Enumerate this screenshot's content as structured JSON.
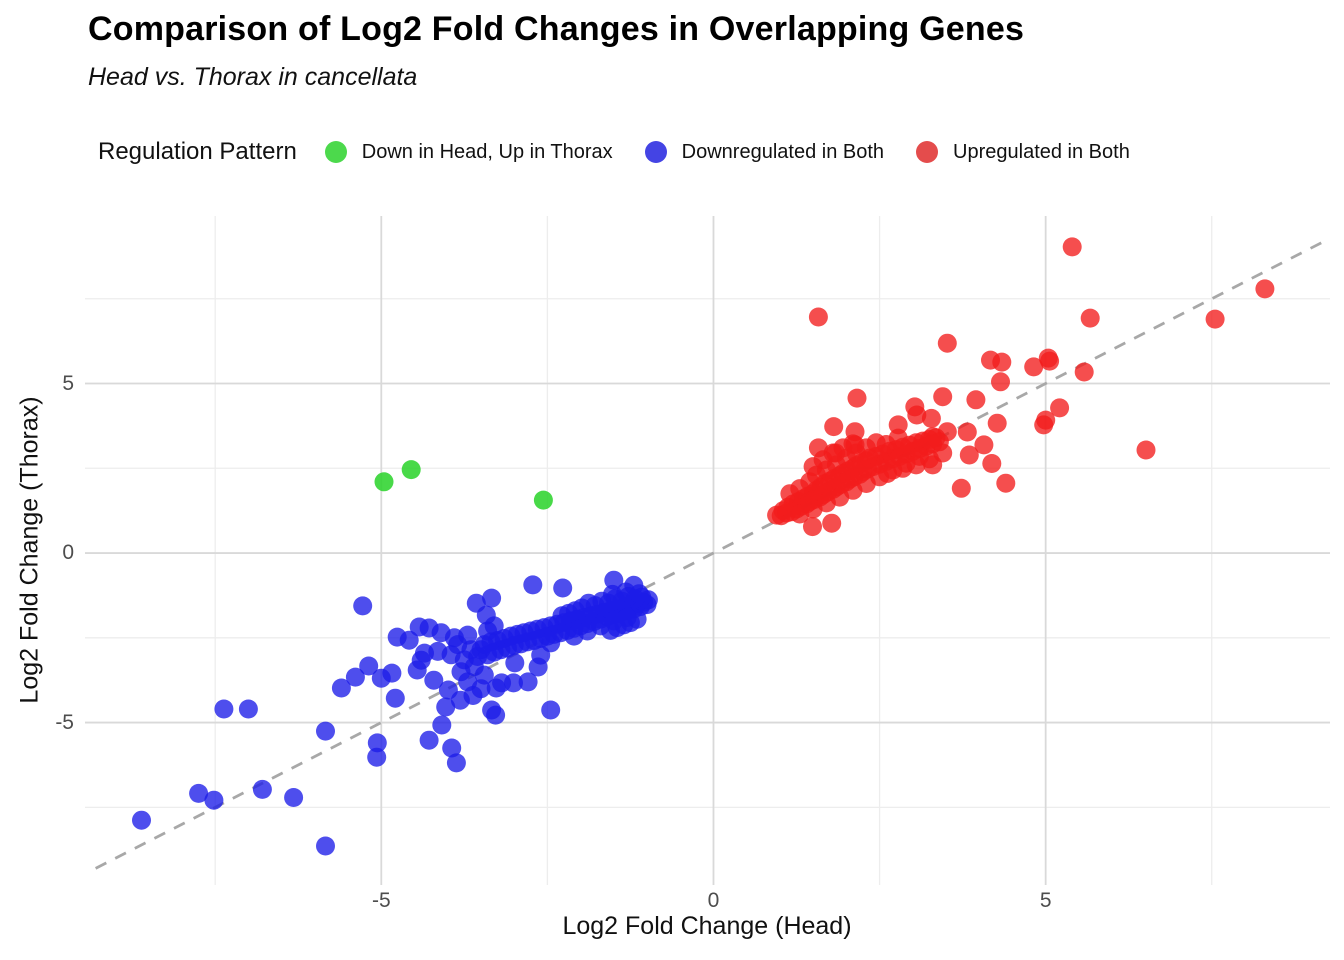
{
  "ui": {
    "title": "Comparison of Log2 Fold Changes in Overlapping Genes",
    "subtitle": "Head vs. Thorax in cancellata",
    "legend": {
      "title": "Regulation Pattern",
      "items": [
        {
          "label": "Down in Head, Up in Thorax",
          "color": "#4cd94c"
        },
        {
          "label": "Downregulated in Both",
          "color": "#4444e4"
        },
        {
          "label": "Upregulated in Both",
          "color": "#e44c4c"
        }
      ]
    },
    "x_axis": {
      "label": "Log2 Fold Change (Head)"
    },
    "y_axis": {
      "label": "Log2 Fold Change (Thorax)"
    }
  },
  "chart_data": {
    "type": "scatter",
    "title": "Comparison of Log2 Fold Changes in Overlapping Genes",
    "subtitle": "Head vs. Thorax in cancellata",
    "xlabel": "Log2 Fold Change (Head)",
    "ylabel": "Log2 Fold Change (Thorax)",
    "xlim": [
      -9.46,
      9.28
    ],
    "ylim": [
      -9.79,
      9.94
    ],
    "x_major_ticks": [
      -5,
      0,
      5
    ],
    "x_tick_labels": [
      "-5",
      "0",
      "5"
    ],
    "x_minor_ticks": [
      -7.5,
      -2.5,
      2.5,
      7.5
    ],
    "y_major_ticks": [
      -5,
      0,
      5
    ],
    "y_tick_labels": [
      "-5",
      "0",
      "5"
    ],
    "y_minor_ticks": [
      -7.5,
      -2.5,
      2.5,
      7.5
    ],
    "grid": true,
    "grid_major_color": "#d9d9d9",
    "grid_minor_color": "#ededed",
    "legend_position": "top",
    "identity_line": {
      "style": "dashed",
      "color": "#a8a8a8",
      "from": [
        -9.3,
        -9.3
      ],
      "to": [
        9.28,
        9.28
      ]
    },
    "point_radius": 9.5,
    "series": [
      {
        "name": "Down in Head, Up in Thorax",
        "color": "rgba(40,210,40,0.85)",
        "points": [
          [
            -4.96,
            2.1
          ],
          [
            -4.55,
            2.46
          ],
          [
            -2.56,
            1.56
          ]
        ]
      },
      {
        "name": "Downregulated in Both",
        "color": "rgba(28,28,232,0.78)",
        "points": [
          [
            -8.61,
            -7.88
          ],
          [
            -7.75,
            -7.09
          ],
          [
            -7.52,
            -7.29
          ],
          [
            -6.79,
            -6.97
          ],
          [
            -6.32,
            -7.21
          ],
          [
            -5.84,
            -8.64
          ],
          [
            -5.28,
            -1.56
          ],
          [
            -7.37,
            -4.6
          ],
          [
            -7.0,
            -4.6
          ],
          [
            -5.84,
            -5.25
          ],
          [
            -5.06,
            -5.6
          ],
          [
            -5.07,
            -6.02
          ],
          [
            -5.6,
            -3.98
          ],
          [
            -5.39,
            -3.66
          ],
          [
            -5.19,
            -3.33
          ],
          [
            -5.0,
            -3.69
          ],
          [
            -4.84,
            -3.54
          ],
          [
            -4.79,
            -4.28
          ],
          [
            -4.76,
            -2.48
          ],
          [
            -4.43,
            -2.18
          ],
          [
            -4.28,
            -2.21
          ],
          [
            -4.58,
            -2.57
          ],
          [
            -4.4,
            -3.16
          ],
          [
            -4.46,
            -3.45
          ],
          [
            -4.21,
            -3.75
          ],
          [
            -3.99,
            -4.04
          ],
          [
            -3.81,
            -4.34
          ],
          [
            -4.03,
            -4.54
          ],
          [
            -4.09,
            -5.07
          ],
          [
            -4.28,
            -5.52
          ],
          [
            -3.94,
            -5.75
          ],
          [
            -3.87,
            -6.19
          ],
          [
            -3.34,
            -4.63
          ],
          [
            -3.28,
            -4.78
          ],
          [
            -2.45,
            -4.63
          ],
          [
            -2.72,
            -0.94
          ],
          [
            -2.27,
            -1.03
          ],
          [
            -3.57,
            -1.48
          ],
          [
            -3.34,
            -1.33
          ],
          [
            -3.42,
            -1.83
          ],
          [
            -3.27,
            -3.98
          ],
          [
            -3.19,
            -3.83
          ],
          [
            -3.01,
            -3.83
          ],
          [
            -2.79,
            -3.8
          ],
          [
            -2.99,
            -3.24
          ],
          [
            -2.64,
            -3.36
          ],
          [
            -2.45,
            -2.65
          ],
          [
            -2.6,
            -3.01
          ],
          [
            -3.5,
            -2.85
          ],
          [
            -3.45,
            -2.7
          ],
          [
            -3.4,
            -3.0
          ],
          [
            -3.35,
            -2.62
          ],
          [
            -3.3,
            -2.92
          ],
          [
            -3.25,
            -2.58
          ],
          [
            -3.2,
            -2.85
          ],
          [
            -3.15,
            -2.52
          ],
          [
            -3.1,
            -2.8
          ],
          [
            -3.05,
            -2.45
          ],
          [
            -3.0,
            -2.72
          ],
          [
            -2.95,
            -2.4
          ],
          [
            -2.9,
            -2.68
          ],
          [
            -2.85,
            -2.35
          ],
          [
            -2.8,
            -2.62
          ],
          [
            -2.75,
            -2.3
          ],
          [
            -2.7,
            -2.58
          ],
          [
            -2.65,
            -2.25
          ],
          [
            -2.6,
            -2.52
          ],
          [
            -2.55,
            -2.2
          ],
          [
            -2.5,
            -2.45
          ],
          [
            -2.45,
            -2.15
          ],
          [
            -2.4,
            -2.4
          ],
          [
            -2.35,
            -2.1
          ],
          [
            -2.3,
            -2.35
          ],
          [
            -2.25,
            -2.05
          ],
          [
            -2.2,
            -2.28
          ],
          [
            -2.15,
            -2.0
          ],
          [
            -2.1,
            -2.22
          ],
          [
            -2.05,
            -1.95
          ],
          [
            -2.0,
            -2.15
          ],
          [
            -1.95,
            -1.9
          ],
          [
            -1.9,
            -2.08
          ],
          [
            -1.85,
            -1.85
          ],
          [
            -1.8,
            -2.02
          ],
          [
            -1.75,
            -1.8
          ],
          [
            -1.7,
            -1.95
          ],
          [
            -1.65,
            -1.75
          ],
          [
            -1.6,
            -1.88
          ],
          [
            -1.55,
            -1.7
          ],
          [
            -1.5,
            -1.82
          ],
          [
            -1.45,
            -1.65
          ],
          [
            -1.4,
            -1.76
          ],
          [
            -1.35,
            -1.6
          ],
          [
            -1.3,
            -1.7
          ],
          [
            -1.25,
            -1.55
          ],
          [
            -1.2,
            -1.65
          ],
          [
            -1.15,
            -1.5
          ],
          [
            -1.1,
            -1.58
          ],
          [
            -1.05,
            -1.45
          ],
          [
            -1.0,
            -1.52
          ],
          [
            -0.98,
            -1.38
          ],
          [
            -1.08,
            -1.3
          ],
          [
            -1.18,
            -1.35
          ],
          [
            -1.28,
            -1.28
          ],
          [
            -1.38,
            -1.42
          ],
          [
            -1.48,
            -1.35
          ],
          [
            -1.58,
            -1.48
          ],
          [
            -1.68,
            -1.42
          ],
          [
            -1.78,
            -1.55
          ],
          [
            -1.88,
            -1.48
          ],
          [
            -1.98,
            -1.62
          ],
          [
            -2.08,
            -1.7
          ],
          [
            -2.18,
            -1.78
          ],
          [
            -2.28,
            -1.85
          ],
          [
            -1.15,
            -1.95
          ],
          [
            -1.25,
            -2.05
          ],
          [
            -1.35,
            -2.12
          ],
          [
            -1.45,
            -2.2
          ],
          [
            -1.55,
            -2.28
          ],
          [
            -1.3,
            -1.9
          ],
          [
            -1.5,
            -2.0
          ],
          [
            -1.7,
            -2.15
          ],
          [
            -1.9,
            -2.3
          ],
          [
            -2.1,
            -2.45
          ],
          [
            -1.12,
            -1.2
          ],
          [
            -1.32,
            -1.15
          ],
          [
            -1.52,
            -1.22
          ],
          [
            -1.5,
            -0.8
          ],
          [
            -1.2,
            -0.95
          ],
          [
            -4.1,
            -2.35
          ],
          [
            -3.9,
            -2.5
          ],
          [
            -3.7,
            -2.42
          ],
          [
            -3.85,
            -2.7
          ],
          [
            -3.65,
            -2.85
          ],
          [
            -3.95,
            -3.0
          ],
          [
            -3.75,
            -3.15
          ],
          [
            -3.55,
            -3.05
          ],
          [
            -3.6,
            -3.35
          ],
          [
            -3.8,
            -3.5
          ],
          [
            -3.45,
            -3.6
          ],
          [
            -3.7,
            -3.8
          ],
          [
            -3.5,
            -4.0
          ],
          [
            -3.62,
            -4.2
          ],
          [
            -4.15,
            -2.9
          ],
          [
            -4.35,
            -2.95
          ],
          [
            -3.4,
            -2.3
          ],
          [
            -3.3,
            -2.15
          ]
        ]
      },
      {
        "name": "Upregulated in Both",
        "color": "rgba(242,28,28,0.78)",
        "points": [
          [
            1.58,
            6.96
          ],
          [
            5.4,
            9.03
          ],
          [
            8.3,
            7.79
          ],
          [
            5.67,
            6.93
          ],
          [
            7.55,
            6.9
          ],
          [
            3.52,
            6.19
          ],
          [
            4.17,
            5.69
          ],
          [
            4.34,
            5.63
          ],
          [
            4.82,
            5.49
          ],
          [
            5.06,
            5.66
          ],
          [
            5.58,
            5.34
          ],
          [
            5.04,
            5.75
          ],
          [
            4.32,
            5.05
          ],
          [
            5.21,
            4.28
          ],
          [
            4.97,
            3.78
          ],
          [
            6.51,
            3.04
          ],
          [
            2.16,
            4.57
          ],
          [
            3.45,
            4.61
          ],
          [
            3.95,
            4.52
          ],
          [
            3.03,
            4.31
          ],
          [
            3.28,
            3.97
          ],
          [
            1.81,
            3.73
          ],
          [
            2.13,
            3.58
          ],
          [
            1.58,
            3.1
          ],
          [
            1.84,
            2.95
          ],
          [
            2.13,
            3.19
          ],
          [
            2.78,
            3.39
          ],
          [
            2.78,
            3.78
          ],
          [
            3.06,
            4.07
          ],
          [
            3.3,
            3.43
          ],
          [
            3.52,
            3.58
          ],
          [
            3.82,
            3.57
          ],
          [
            4.27,
            3.83
          ],
          [
            5.0,
            3.92
          ],
          [
            4.07,
            3.19
          ],
          [
            4.19,
            2.64
          ],
          [
            4.4,
            2.06
          ],
          [
            3.85,
            2.89
          ],
          [
            3.73,
            1.91
          ],
          [
            0.95,
            1.12
          ],
          [
            1.02,
            1.1
          ],
          [
            1.05,
            1.25
          ],
          [
            1.1,
            1.18
          ],
          [
            1.12,
            1.35
          ],
          [
            1.18,
            1.22
          ],
          [
            1.2,
            1.45
          ],
          [
            1.25,
            1.3
          ],
          [
            1.28,
            1.52
          ],
          [
            1.32,
            1.38
          ],
          [
            1.35,
            1.6
          ],
          [
            1.4,
            1.45
          ],
          [
            1.42,
            1.68
          ],
          [
            1.45,
            1.52
          ],
          [
            1.5,
            1.75
          ],
          [
            1.52,
            1.58
          ],
          [
            1.55,
            1.85
          ],
          [
            1.6,
            1.65
          ],
          [
            1.62,
            1.95
          ],
          [
            1.65,
            1.72
          ],
          [
            1.68,
            2.05
          ],
          [
            1.72,
            1.8
          ],
          [
            1.75,
            2.12
          ],
          [
            1.8,
            1.88
          ],
          [
            1.82,
            2.2
          ],
          [
            1.85,
            1.95
          ],
          [
            1.9,
            2.28
          ],
          [
            1.92,
            2.02
          ],
          [
            1.95,
            2.35
          ],
          [
            2.0,
            2.1
          ],
          [
            2.02,
            2.42
          ],
          [
            2.05,
            2.18
          ],
          [
            2.1,
            2.5
          ],
          [
            2.12,
            2.25
          ],
          [
            2.15,
            2.58
          ],
          [
            2.2,
            2.32
          ],
          [
            2.22,
            2.65
          ],
          [
            2.25,
            2.4
          ],
          [
            2.3,
            2.72
          ],
          [
            2.32,
            2.48
          ],
          [
            2.35,
            2.8
          ],
          [
            2.4,
            2.55
          ],
          [
            2.45,
            2.85
          ],
          [
            2.5,
            2.62
          ],
          [
            2.55,
            2.92
          ],
          [
            2.6,
            2.7
          ],
          [
            2.65,
            3.0
          ],
          [
            2.7,
            2.78
          ],
          [
            2.75,
            3.05
          ],
          [
            2.8,
            2.85
          ],
          [
            2.85,
            3.12
          ],
          [
            2.9,
            2.92
          ],
          [
            2.95,
            3.18
          ],
          [
            3.0,
            3.0
          ],
          [
            3.05,
            3.25
          ],
          [
            3.1,
            3.08
          ],
          [
            3.15,
            3.3
          ],
          [
            3.2,
            3.15
          ],
          [
            3.25,
            3.35
          ],
          [
            3.3,
            3.22
          ],
          [
            3.35,
            3.4
          ],
          [
            3.4,
            3.28
          ],
          [
            1.15,
            1.75
          ],
          [
            1.3,
            1.9
          ],
          [
            1.45,
            2.1
          ],
          [
            1.55,
            2.3
          ],
          [
            1.7,
            2.45
          ],
          [
            1.85,
            2.6
          ],
          [
            2.0,
            2.8
          ],
          [
            2.15,
            2.95
          ],
          [
            2.3,
            3.1
          ],
          [
            2.45,
            3.25
          ],
          [
            2.6,
            3.2
          ],
          [
            1.5,
            2.55
          ],
          [
            1.65,
            2.75
          ],
          [
            1.8,
            2.95
          ],
          [
            1.95,
            3.1
          ],
          [
            2.1,
            3.22
          ],
          [
            1.3,
            1.15
          ],
          [
            1.5,
            1.3
          ],
          [
            1.7,
            1.48
          ],
          [
            1.9,
            1.65
          ],
          [
            2.1,
            1.85
          ],
          [
            2.3,
            2.05
          ],
          [
            2.5,
            2.25
          ],
          [
            2.7,
            2.45
          ],
          [
            2.9,
            2.65
          ],
          [
            3.1,
            2.85
          ],
          [
            2.62,
            2.35
          ],
          [
            2.85,
            2.5
          ],
          [
            3.05,
            2.6
          ],
          [
            3.25,
            2.78
          ],
          [
            3.45,
            2.95
          ],
          [
            3.3,
            2.6
          ],
          [
            1.49,
            0.78
          ],
          [
            1.78,
            0.88
          ]
        ]
      }
    ]
  }
}
